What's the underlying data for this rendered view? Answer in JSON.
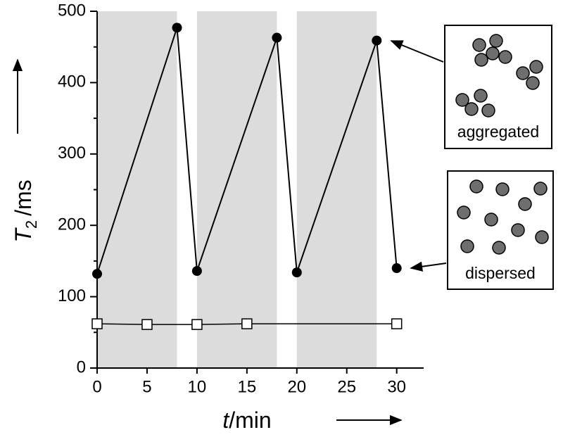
{
  "chart_data": {
    "type": "line",
    "xlabel": {
      "symbol": "t",
      "unit": "/min"
    },
    "ylabel": {
      "symbol": "T",
      "subscript": "2",
      "unit": "/ms"
    },
    "xlim": [
      0,
      32.7
    ],
    "ylim": [
      0,
      500
    ],
    "xticks": [
      0,
      5,
      10,
      15,
      20,
      25,
      30
    ],
    "yticks": [
      0,
      100,
      200,
      300,
      400,
      500
    ],
    "y_minor_ticks": [
      50,
      150,
      250,
      350,
      450
    ],
    "shaded_regions": [
      [
        0,
        8
      ],
      [
        10,
        18
      ],
      [
        20,
        28
      ]
    ],
    "shade_color": "#dcdcdc",
    "series": [
      {
        "marker": "filled-circle",
        "color": "#000000",
        "x": [
          0,
          8,
          10,
          18,
          20,
          28,
          30
        ],
        "values": [
          132,
          477,
          136,
          463,
          134,
          459,
          140
        ]
      },
      {
        "marker": "open-square",
        "color": "#000000",
        "x": [
          0,
          5,
          10,
          15,
          30
        ],
        "values": [
          62,
          61,
          61,
          62,
          62
        ]
      }
    ],
    "annotations": [
      "aggregated",
      "dispersed"
    ]
  }
}
